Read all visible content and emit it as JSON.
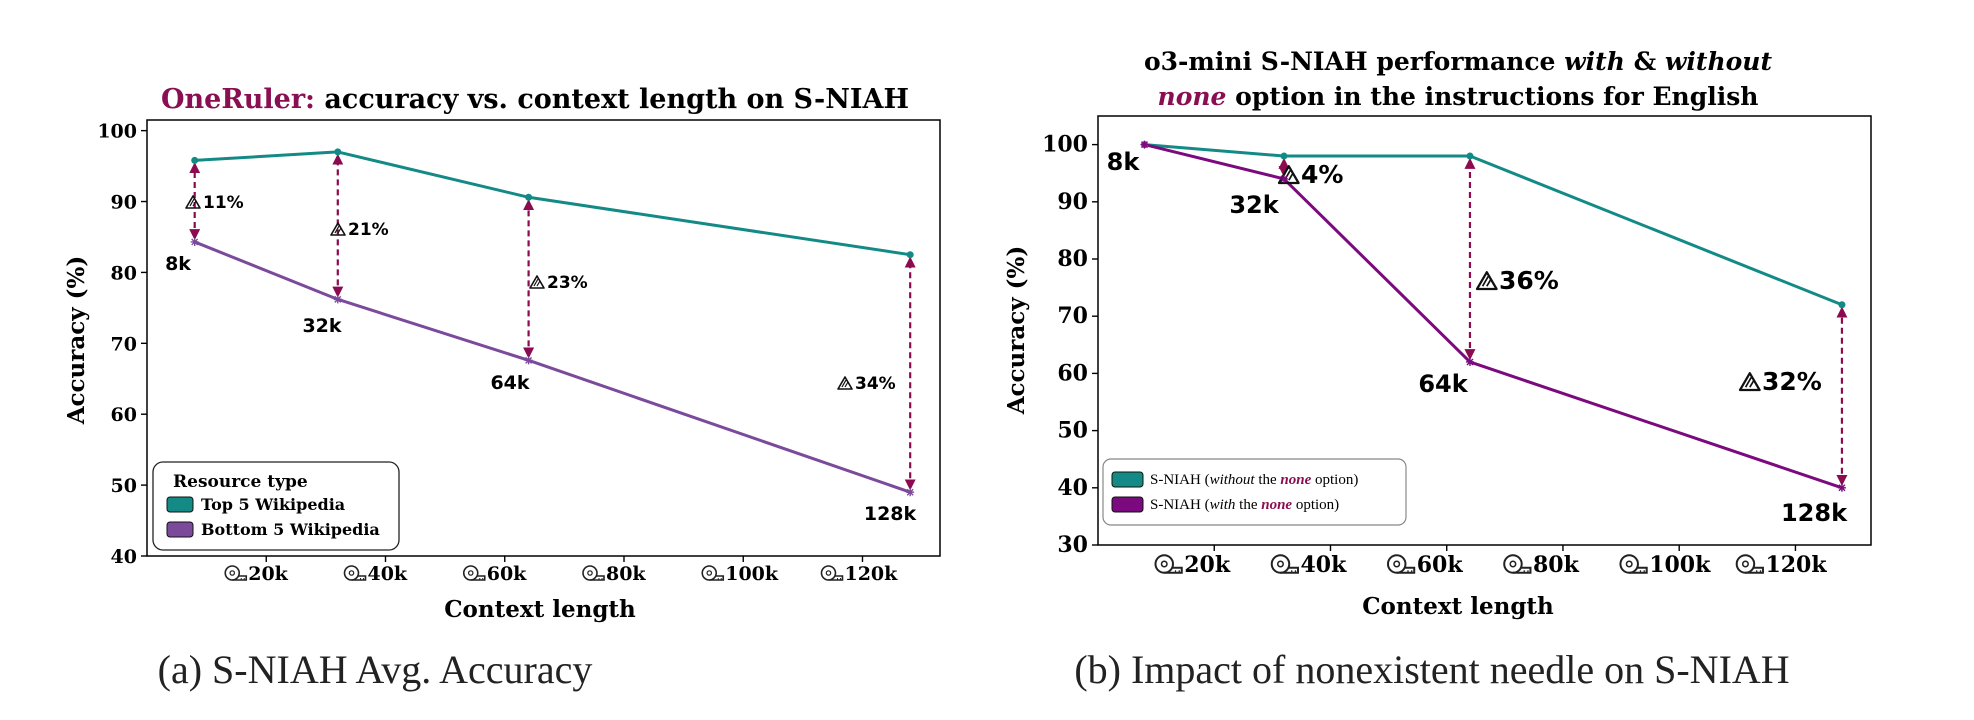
{
  "colors": {
    "teal": "#138a86",
    "purple_a": "#7b4a9b",
    "purple_b": "#7b0a7e",
    "maroon": "#8c0a4f",
    "title_accent": "#8a0f52"
  },
  "chart_data": [
    {
      "type": "line",
      "title_accent": "OneRuler:",
      "title_rest": " accuracy vs. context length on S-NIAH",
      "xlabel": "Context length",
      "ylabel": "Accuracy (%)",
      "x": [
        8000,
        32000,
        64000,
        128000
      ],
      "point_labels": [
        "8k",
        "32k",
        "64k",
        "128k"
      ],
      "xticks": [
        20000,
        40000,
        60000,
        80000,
        100000,
        120000
      ],
      "xtick_labels": [
        "20k",
        "40k",
        "60k",
        "80k",
        "100k",
        "120k"
      ],
      "xlim": [
        0,
        133000
      ],
      "yticks": [
        40,
        50,
        60,
        70,
        80,
        90,
        100
      ],
      "ylim": [
        40,
        101.5
      ],
      "series": [
        {
          "name": "Top 5 Wikipedia",
          "values": [
            95.8,
            97.0,
            90.6,
            82.5
          ],
          "color": "#138a86"
        },
        {
          "name": "Bottom 5 Wikipedia",
          "values": [
            84.3,
            76.2,
            67.6,
            49.0
          ],
          "color": "#7b4a9b"
        }
      ],
      "gaps": [
        "11%",
        "21%",
        "23%",
        "34%"
      ],
      "legend_title": "Resource type",
      "legend_position": "bottom-left",
      "caption": "(a) S-NIAH Avg. Accuracy"
    },
    {
      "type": "line",
      "title_line1_pre": "o3-mini S-NIAH performance ",
      "title_line1_em1": "with",
      "title_line1_mid": " & ",
      "title_line1_em2": "without",
      "title_line2_em": "none",
      "title_line2_rest": " option in the instructions for English",
      "xlabel": "Context length",
      "ylabel": "Accuracy (%)",
      "x": [
        8000,
        32000,
        64000,
        128000
      ],
      "point_labels": [
        "8k",
        "32k",
        "64k",
        "128k"
      ],
      "xticks": [
        20000,
        40000,
        60000,
        80000,
        100000,
        120000
      ],
      "xtick_labels": [
        "20k",
        "40k",
        "60k",
        "80k",
        "100k",
        "120k"
      ],
      "xlim": [
        0,
        133000
      ],
      "yticks": [
        30,
        40,
        50,
        60,
        70,
        80,
        90,
        100
      ],
      "ylim": [
        30,
        105
      ],
      "series": [
        {
          "name": "S-NIAH (without the none option)",
          "values": [
            100,
            98,
            98,
            72
          ],
          "color": "#138a86"
        },
        {
          "name": "S-NIAH (with the none option)",
          "values": [
            100,
            94,
            62,
            40
          ],
          "color": "#7b0a7e"
        }
      ],
      "gaps": [
        "4%",
        "36%",
        "32%"
      ],
      "legend": [
        {
          "pre": "S-NIAH (",
          "em": "without",
          "mid": " the ",
          "none": "none",
          "post": " option)"
        },
        {
          "pre": "S-NIAH (",
          "em": "with",
          "mid": " the ",
          "none": "none",
          "post": " option)"
        }
      ],
      "legend_position": "bottom-left",
      "caption": "(b) Impact of nonexistent needle on S-NIAH"
    }
  ]
}
